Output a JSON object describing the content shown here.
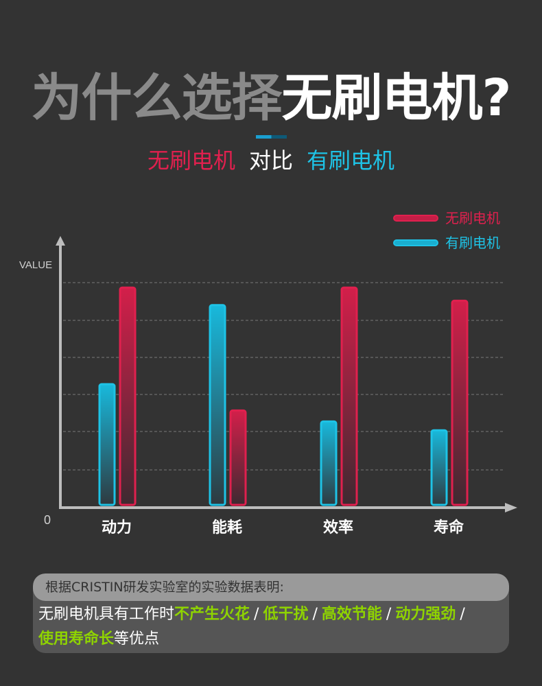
{
  "header": {
    "title_gray": "为什么选择",
    "title_white": "无刷电机?",
    "compare_left": "无刷电机",
    "compare_mid": "对比",
    "compare_right": "有刷电机"
  },
  "colors": {
    "background": "#333333",
    "brushless": "#e0204e",
    "brushed": "#1ec3e6",
    "highlight": "#8fd400"
  },
  "chart_data": {
    "type": "bar",
    "categories": [
      "动力",
      "能耗",
      "效率",
      "寿命"
    ],
    "series": [
      {
        "name": "有刷电机",
        "color": "#1ec3e6",
        "values": [
          55,
          91,
          38,
          34
        ]
      },
      {
        "name": "无刷电机",
        "color": "#e0204e",
        "values": [
          99,
          43,
          99,
          93
        ]
      }
    ],
    "ylabel": "VALUE",
    "y_origin_label": "0",
    "ylim": [
      0,
      100
    ],
    "grid": true,
    "legend": "top-right"
  },
  "note": {
    "heading": "根据CRISTIN研发实验室的实验数据表明:",
    "intro": "无刷电机具有工作时",
    "point_1": "不产生火花",
    "point_2": "低干扰",
    "point_3": "高效节能",
    "point_4": "动力强劲",
    "point_5": "使用寿命长",
    "separator": "/",
    "ending": "等优点"
  }
}
